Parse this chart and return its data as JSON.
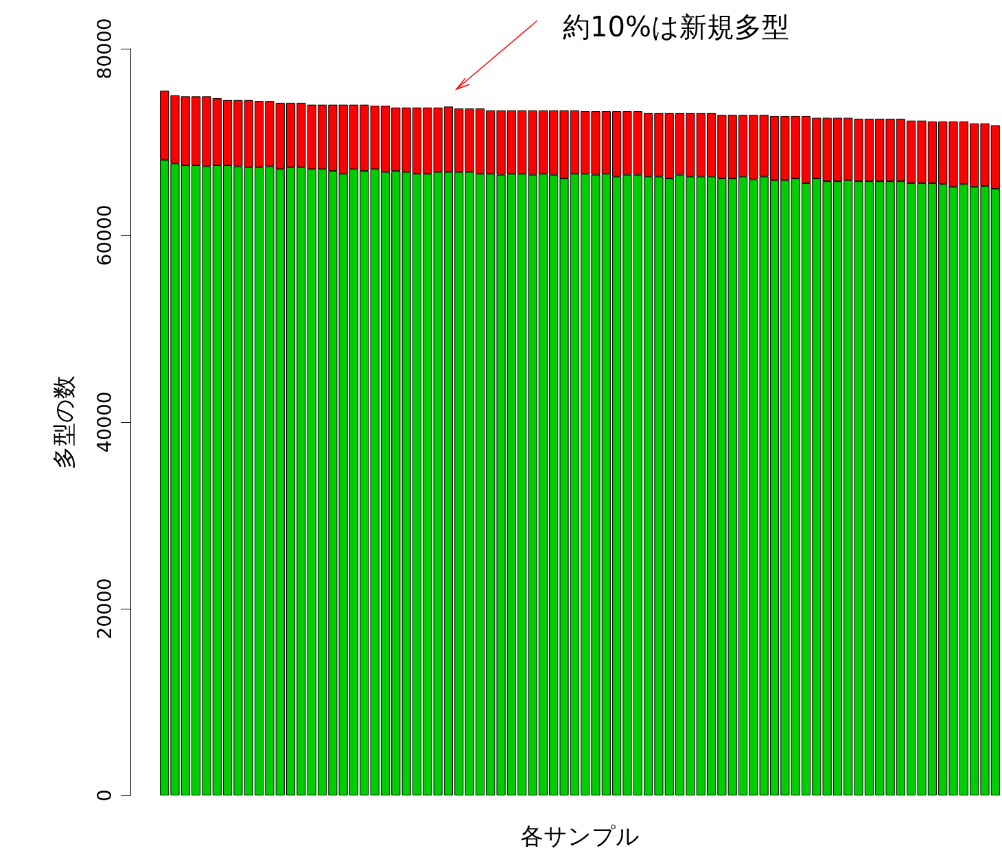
{
  "chart_data": {
    "type": "bar",
    "stacked": true,
    "xlabel": "各サンプル",
    "ylabel": "多型の数",
    "annotations": [
      "約10%は新規多型"
    ],
    "categories": [
      null,
      null,
      null,
      null,
      null,
      null,
      null,
      null,
      null,
      null,
      null,
      null,
      null,
      null,
      null,
      null,
      null,
      null,
      null,
      null,
      null,
      null,
      null,
      null,
      null,
      null,
      null,
      null,
      null,
      null,
      null,
      null,
      null,
      null,
      null,
      null,
      null,
      null,
      null,
      null,
      null,
      null,
      null,
      null,
      null,
      null,
      null,
      null,
      null,
      null,
      null,
      null,
      null,
      null,
      null,
      null,
      null,
      null,
      null,
      null,
      null,
      null,
      null,
      null,
      null,
      null,
      null,
      null,
      null,
      null,
      null,
      null,
      null,
      null,
      null,
      null,
      null,
      null,
      null,
      null
    ],
    "series": [
      {
        "color": "#00cd00",
        "values": [
          68100,
          67700,
          67500,
          67500,
          67400,
          67500,
          67500,
          67400,
          67300,
          67300,
          67400,
          67100,
          67300,
          67300,
          67100,
          67100,
          66900,
          66600,
          67100,
          66900,
          67100,
          66800,
          66900,
          66800,
          66600,
          66600,
          66800,
          66800,
          66800,
          66800,
          66600,
          66600,
          66500,
          66600,
          66600,
          66500,
          66600,
          66500,
          66100,
          66600,
          66600,
          66500,
          66600,
          66300,
          66500,
          66500,
          66300,
          66300,
          66100,
          66500,
          66300,
          66300,
          66300,
          66100,
          66100,
          66300,
          66000,
          66300,
          65900,
          65900,
          66100,
          65600,
          66100,
          65800,
          65800,
          65900,
          65800,
          65800,
          65800,
          65800,
          65800,
          65600,
          65600,
          65600,
          65500,
          65200,
          65500,
          65200,
          65300,
          65000
        ]
      },
      {
        "color": "#ff0000",
        "values": [
          7400,
          7300,
          7400,
          7400,
          7500,
          7200,
          7000,
          7100,
          7200,
          7100,
          7000,
          7100,
          6900,
          6900,
          6900,
          6900,
          7100,
          7400,
          6900,
          7100,
          6800,
          7100,
          6800,
          6900,
          7100,
          7100,
          6900,
          7000,
          6800,
          6800,
          7000,
          6800,
          6900,
          6800,
          6800,
          6900,
          6800,
          6900,
          7300,
          6800,
          6700,
          6800,
          6700,
          7000,
          6800,
          6800,
          6800,
          6800,
          7000,
          6600,
          6800,
          6800,
          6800,
          6800,
          6800,
          6600,
          6900,
          6600,
          6900,
          6900,
          6700,
          7200,
          6500,
          6800,
          6800,
          6700,
          6700,
          6700,
          6700,
          6700,
          6700,
          6700,
          6700,
          6600,
          6700,
          7000,
          6700,
          6800,
          6700,
          6800
        ]
      }
    ],
    "ylim": [
      0,
      80000
    ],
    "yticks": [
      0,
      20000,
      40000,
      60000,
      80000
    ],
    "grid": false
  }
}
